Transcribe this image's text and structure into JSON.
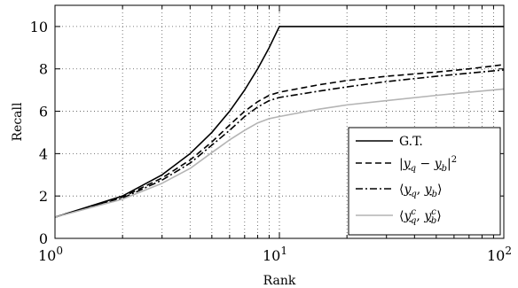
{
  "chart_data": {
    "type": "line",
    "xlabel": "Rank",
    "ylabel": "Recall",
    "xscale": "log",
    "xlim": [
      1,
      100
    ],
    "ylim": [
      0,
      11
    ],
    "grid": true,
    "legend_position": "bottom-right",
    "x_ticks": [
      {
        "value": 1,
        "base": "10",
        "exp": "0"
      },
      {
        "value": 10,
        "base": "10",
        "exp": "1"
      },
      {
        "value": 100,
        "base": "10",
        "exp": "2"
      }
    ],
    "y_ticks": [
      {
        "value": 0,
        "label": "0"
      },
      {
        "value": 2,
        "label": "2"
      },
      {
        "value": 4,
        "label": "4"
      },
      {
        "value": 6,
        "label": "6"
      },
      {
        "value": 8,
        "label": "8"
      },
      {
        "value": 10,
        "label": "10"
      }
    ],
    "series": [
      {
        "name": "G.T.",
        "style": "solid",
        "color": "#000000",
        "x": [
          1,
          2,
          3,
          4,
          5,
          6,
          7,
          8,
          9,
          10,
          20,
          50,
          100
        ],
        "y": [
          1,
          2,
          3,
          4,
          5,
          6,
          7,
          8,
          9,
          10,
          10,
          10,
          10
        ]
      },
      {
        "name": "|y_q − y_b|²",
        "style": "dashed",
        "color": "#000000",
        "x": [
          1,
          2,
          3,
          4,
          5,
          6,
          7,
          8,
          9,
          10,
          15,
          20,
          30,
          50,
          70,
          100
        ],
        "y": [
          1,
          1.95,
          2.85,
          3.7,
          4.55,
          5.35,
          6.0,
          6.45,
          6.75,
          6.9,
          7.25,
          7.45,
          7.65,
          7.85,
          8.0,
          8.2
        ]
      },
      {
        "name": "⟨y_q, y_b⟩",
        "style": "dashdot",
        "color": "#000000",
        "x": [
          1,
          2,
          3,
          4,
          5,
          6,
          7,
          8,
          9,
          10,
          15,
          20,
          30,
          50,
          70,
          100
        ],
        "y": [
          1,
          1.9,
          2.75,
          3.55,
          4.4,
          5.1,
          5.75,
          6.2,
          6.5,
          6.65,
          6.95,
          7.15,
          7.4,
          7.65,
          7.8,
          7.95
        ]
      },
      {
        "name": "⟨y_q^c, y_b^c⟩",
        "style": "solid",
        "color": "#b4b4b4",
        "x": [
          1,
          2,
          3,
          4,
          5,
          6,
          7,
          8,
          9,
          10,
          15,
          20,
          30,
          50,
          70,
          100
        ],
        "y": [
          1,
          1.85,
          2.6,
          3.3,
          4.05,
          4.65,
          5.1,
          5.45,
          5.65,
          5.75,
          6.1,
          6.3,
          6.5,
          6.75,
          6.9,
          7.05
        ]
      }
    ]
  }
}
